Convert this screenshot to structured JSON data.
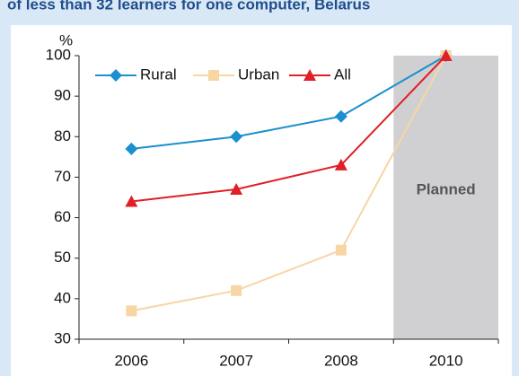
{
  "chart_data": {
    "type": "line",
    "title": "of less than 32 learners for one computer, Belarus",
    "ylabel": "%",
    "annotation": "Planned",
    "categories": [
      "2006",
      "2007",
      "2008",
      "2010"
    ],
    "series": [
      {
        "name": "Rural",
        "color": "#1b8fcf",
        "marker": "diamond",
        "values": [
          77,
          80,
          85,
          100
        ]
      },
      {
        "name": "Urban",
        "color": "#f7d6a4",
        "marker": "square",
        "values": [
          37,
          42,
          52,
          100
        ]
      },
      {
        "name": "All",
        "color": "#e01f26",
        "marker": "triangle",
        "values": [
          64,
          67,
          73,
          100
        ]
      }
    ],
    "ylim": [
      30,
      100
    ],
    "yticks": [
      30,
      40,
      50,
      60,
      70,
      80,
      90,
      100
    ],
    "grid": false,
    "legend": "top-left"
  }
}
